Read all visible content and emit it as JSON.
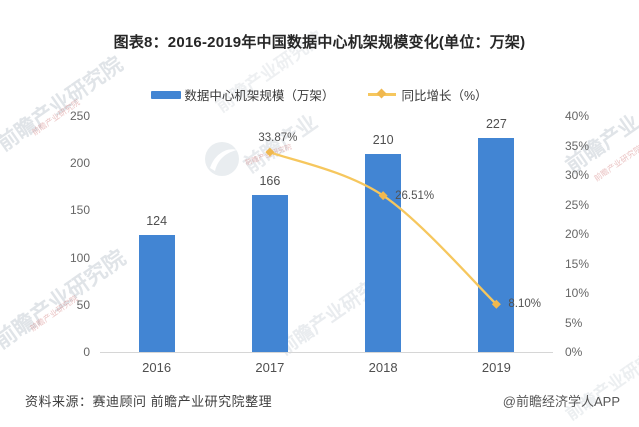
{
  "chart_data": {
    "type": "bar",
    "title": "图表8：2016-2019年中国数据中心机架规模变化(单位：万架)",
    "categories": [
      "2016",
      "2017",
      "2018",
      "2019"
    ],
    "series": [
      {
        "name": "数据中心机架规模（万架）",
        "type": "bar",
        "axis": "left",
        "color": "#4285d3",
        "values": [
          124,
          166,
          210,
          227
        ]
      },
      {
        "name": "同比增长（%）",
        "type": "line",
        "axis": "right",
        "color": "#f6c75e",
        "marker_color": "#f0b84e",
        "values": [
          null,
          33.87,
          26.51,
          8.1
        ],
        "point_labels": [
          null,
          "33.87%",
          "26.51%",
          "8.10%"
        ]
      }
    ],
    "left_axis": {
      "min": 0,
      "max": 250,
      "ticks": [
        250,
        200,
        150,
        100,
        50,
        0
      ]
    },
    "right_axis": {
      "min": 0,
      "max": 40,
      "ticks": [
        "40%",
        "35%",
        "30%",
        "25%",
        "20%",
        "15%",
        "10%",
        "5%",
        "0%"
      ]
    },
    "legend_position": "top",
    "grid": false
  },
  "footer": {
    "source": "资料来源：赛迪顾问 前瞻产业研究院整理",
    "credit": "@前瞻经济学人APP"
  },
  "watermark": {
    "brand": "前瞻产业研究院",
    "brand_short": "前瞻产业"
  }
}
